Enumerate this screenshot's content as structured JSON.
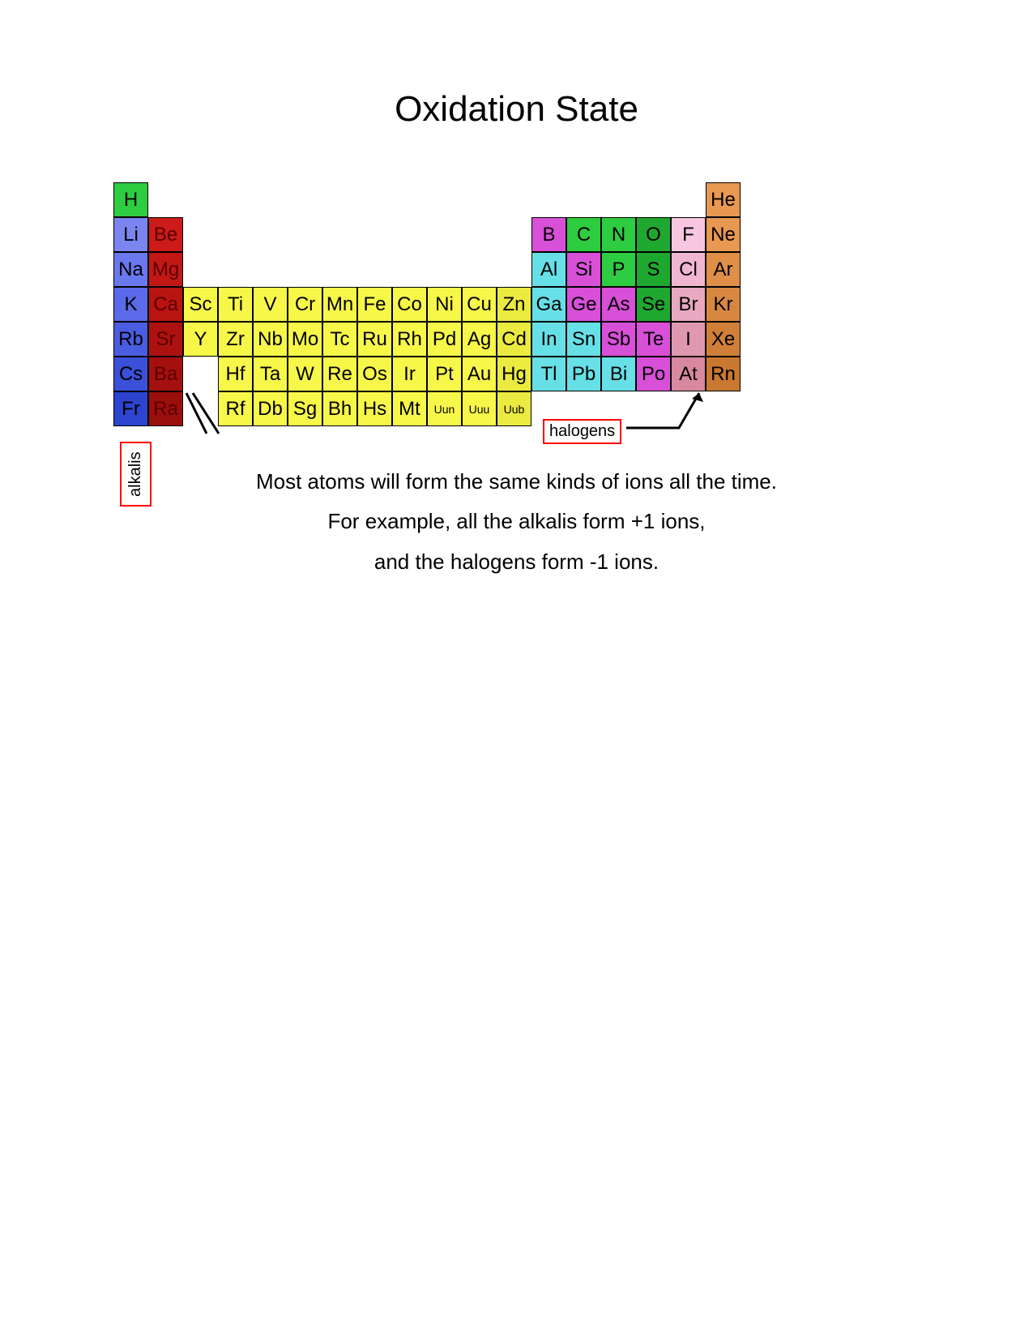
{
  "title": "Oxidation State",
  "cell_size": 43,
  "periods": 7,
  "groups": 18,
  "colors": {
    "h": "#2ecc40",
    "alkali_top": "#6f7ff5",
    "alkali_bot": "#3b4de0",
    "alkaline_earth": "#cc1b18",
    "transition_light": "#f7f74a",
    "transition_dark": "#e8e830",
    "post_transition": "#66e0e6",
    "metalloid": "#d84fd8",
    "nonmetal_green": "#2ecc40",
    "nonmetal_green_dark": "#1fa82f",
    "halogen_top": "#f8b6d8",
    "halogen_bot": "#d88aa8",
    "noble_top": "#f0a858",
    "noble_bot": "#c87830",
    "border": "#000000",
    "label_border": "#ff0000",
    "text": "#000000",
    "text_dark": "#5a0000"
  },
  "elements": [
    {
      "sym": "H",
      "g": 1,
      "p": 1,
      "c": "#2ecc40"
    },
    {
      "sym": "He",
      "g": 18,
      "p": 1,
      "c": "#e89850"
    },
    {
      "sym": "Li",
      "g": 1,
      "p": 2,
      "c": "#7a85f0"
    },
    {
      "sym": "Be",
      "g": 2,
      "p": 2,
      "c": "#cc1b18",
      "tc": "#5a0000"
    },
    {
      "sym": "B",
      "g": 13,
      "p": 2,
      "c": "#d84fd8"
    },
    {
      "sym": "C",
      "g": 14,
      "p": 2,
      "c": "#2ecc40"
    },
    {
      "sym": "N",
      "g": 15,
      "p": 2,
      "c": "#2ecc40"
    },
    {
      "sym": "O",
      "g": 16,
      "p": 2,
      "c": "#1fa82f"
    },
    {
      "sym": "F",
      "g": 17,
      "p": 2,
      "c": "#f8c6e0"
    },
    {
      "sym": "Ne",
      "g": 18,
      "p": 2,
      "c": "#e89850"
    },
    {
      "sym": "Na",
      "g": 1,
      "p": 3,
      "c": "#6a78ee"
    },
    {
      "sym": "Mg",
      "g": 2,
      "p": 3,
      "c": "#c21815",
      "tc": "#5a0000"
    },
    {
      "sym": "Al",
      "g": 13,
      "p": 3,
      "c": "#66e0e6"
    },
    {
      "sym": "Si",
      "g": 14,
      "p": 3,
      "c": "#d84fd8"
    },
    {
      "sym": "P",
      "g": 15,
      "p": 3,
      "c": "#2ecc40"
    },
    {
      "sym": "S",
      "g": 16,
      "p": 3,
      "c": "#1fa82f"
    },
    {
      "sym": "Cl",
      "g": 17,
      "p": 3,
      "c": "#f0b6d0"
    },
    {
      "sym": "Ar",
      "g": 18,
      "p": 3,
      "c": "#e08f48"
    },
    {
      "sym": "K",
      "g": 1,
      "p": 4,
      "c": "#5a6ae8"
    },
    {
      "sym": "Ca",
      "g": 2,
      "p": 4,
      "c": "#b81512",
      "tc": "#5a0000"
    },
    {
      "sym": "Sc",
      "g": 3,
      "p": 4,
      "c": "#f7f74a"
    },
    {
      "sym": "Ti",
      "g": 4,
      "p": 4,
      "c": "#f7f74a"
    },
    {
      "sym": "V",
      "g": 5,
      "p": 4,
      "c": "#f7f74a"
    },
    {
      "sym": "Cr",
      "g": 6,
      "p": 4,
      "c": "#f7f74a"
    },
    {
      "sym": "Mn",
      "g": 7,
      "p": 4,
      "c": "#f7f74a"
    },
    {
      "sym": "Fe",
      "g": 8,
      "p": 4,
      "c": "#f7f74a"
    },
    {
      "sym": "Co",
      "g": 9,
      "p": 4,
      "c": "#f7f74a"
    },
    {
      "sym": "Ni",
      "g": 10,
      "p": 4,
      "c": "#f7f74a"
    },
    {
      "sym": "Cu",
      "g": 11,
      "p": 4,
      "c": "#f7f74a"
    },
    {
      "sym": "Zn",
      "g": 12,
      "p": 4,
      "c": "#eaea40"
    },
    {
      "sym": "Ga",
      "g": 13,
      "p": 4,
      "c": "#66e0e6"
    },
    {
      "sym": "Ge",
      "g": 14,
      "p": 4,
      "c": "#d84fd8"
    },
    {
      "sym": "As",
      "g": 15,
      "p": 4,
      "c": "#d84fd8"
    },
    {
      "sym": "Se",
      "g": 16,
      "p": 4,
      "c": "#1fa82f"
    },
    {
      "sym": "Br",
      "g": 17,
      "p": 4,
      "c": "#e8a8c0"
    },
    {
      "sym": "Kr",
      "g": 18,
      "p": 4,
      "c": "#d88740"
    },
    {
      "sym": "Rb",
      "g": 1,
      "p": 5,
      "c": "#4a5de0"
    },
    {
      "sym": "Sr",
      "g": 2,
      "p": 5,
      "c": "#ae1210",
      "tc": "#5a0000"
    },
    {
      "sym": "Y",
      "g": 3,
      "p": 5,
      "c": "#f7f74a"
    },
    {
      "sym": "Zr",
      "g": 4,
      "p": 5,
      "c": "#f7f74a"
    },
    {
      "sym": "Nb",
      "g": 5,
      "p": 5,
      "c": "#f7f74a"
    },
    {
      "sym": "Mo",
      "g": 6,
      "p": 5,
      "c": "#f7f74a"
    },
    {
      "sym": "Tc",
      "g": 7,
      "p": 5,
      "c": "#f7f74a"
    },
    {
      "sym": "Ru",
      "g": 8,
      "p": 5,
      "c": "#f7f74a"
    },
    {
      "sym": "Rh",
      "g": 9,
      "p": 5,
      "c": "#f7f74a"
    },
    {
      "sym": "Pd",
      "g": 10,
      "p": 5,
      "c": "#f7f74a"
    },
    {
      "sym": "Ag",
      "g": 11,
      "p": 5,
      "c": "#f7f74a"
    },
    {
      "sym": "Cd",
      "g": 12,
      "p": 5,
      "c": "#eaea40"
    },
    {
      "sym": "In",
      "g": 13,
      "p": 5,
      "c": "#66e0e6"
    },
    {
      "sym": "Sn",
      "g": 14,
      "p": 5,
      "c": "#66e0e6"
    },
    {
      "sym": "Sb",
      "g": 15,
      "p": 5,
      "c": "#d84fd8"
    },
    {
      "sym": "Te",
      "g": 16,
      "p": 5,
      "c": "#d84fd8"
    },
    {
      "sym": "I",
      "g": 17,
      "p": 5,
      "c": "#e098b0"
    },
    {
      "sym": "Xe",
      "g": 18,
      "p": 5,
      "c": "#d07f38"
    },
    {
      "sym": "Cs",
      "g": 1,
      "p": 6,
      "c": "#3b50d8"
    },
    {
      "sym": "Ba",
      "g": 2,
      "p": 6,
      "c": "#a4100e",
      "tc": "#5a0000"
    },
    {
      "sym": "Hf",
      "g": 4,
      "p": 6,
      "c": "#f7f74a"
    },
    {
      "sym": "Ta",
      "g": 5,
      "p": 6,
      "c": "#f7f74a"
    },
    {
      "sym": "W",
      "g": 6,
      "p": 6,
      "c": "#f7f74a"
    },
    {
      "sym": "Re",
      "g": 7,
      "p": 6,
      "c": "#f7f74a"
    },
    {
      "sym": "Os",
      "g": 8,
      "p": 6,
      "c": "#f7f74a"
    },
    {
      "sym": "Ir",
      "g": 9,
      "p": 6,
      "c": "#f7f74a"
    },
    {
      "sym": "Pt",
      "g": 10,
      "p": 6,
      "c": "#f7f74a"
    },
    {
      "sym": "Au",
      "g": 11,
      "p": 6,
      "c": "#f7f74a"
    },
    {
      "sym": "Hg",
      "g": 12,
      "p": 6,
      "c": "#eaea40"
    },
    {
      "sym": "Tl",
      "g": 13,
      "p": 6,
      "c": "#66e0e6"
    },
    {
      "sym": "Pb",
      "g": 14,
      "p": 6,
      "c": "#66e0e6"
    },
    {
      "sym": "Bi",
      "g": 15,
      "p": 6,
      "c": "#66e0e6"
    },
    {
      "sym": "Po",
      "g": 16,
      "p": 6,
      "c": "#d84fd8"
    },
    {
      "sym": "At",
      "g": 17,
      "p": 6,
      "c": "#d888a0"
    },
    {
      "sym": "Rn",
      "g": 18,
      "p": 6,
      "c": "#c87830"
    },
    {
      "sym": "Fr",
      "g": 1,
      "p": 7,
      "c": "#2c44d0"
    },
    {
      "sym": "Ra",
      "g": 2,
      "p": 7,
      "c": "#9a0e0c",
      "tc": "#5a0000"
    },
    {
      "sym": "Rf",
      "g": 4,
      "p": 7,
      "c": "#f7f74a"
    },
    {
      "sym": "Db",
      "g": 5,
      "p": 7,
      "c": "#f7f74a"
    },
    {
      "sym": "Sg",
      "g": 6,
      "p": 7,
      "c": "#f7f74a"
    },
    {
      "sym": "Bh",
      "g": 7,
      "p": 7,
      "c": "#f7f74a"
    },
    {
      "sym": "Hs",
      "g": 8,
      "p": 7,
      "c": "#f7f74a"
    },
    {
      "sym": "Mt",
      "g": 9,
      "p": 7,
      "c": "#f7f74a"
    },
    {
      "sym": "Uun",
      "g": 10,
      "p": 7,
      "c": "#f7f74a",
      "small": true
    },
    {
      "sym": "Uuu",
      "g": 11,
      "p": 7,
      "c": "#f7f74a",
      "small": true
    },
    {
      "sym": "Uub",
      "g": 12,
      "p": 7,
      "c": "#eaea40",
      "small": true
    }
  ],
  "labels": {
    "alkalis": "alkalis",
    "halogens": "halogens"
  },
  "body_lines": [
    "Most atoms will form the same kinds of ions all the time.",
    "For example, all the alkalis form +1 ions,",
    "and the halogens form -1 ions."
  ]
}
